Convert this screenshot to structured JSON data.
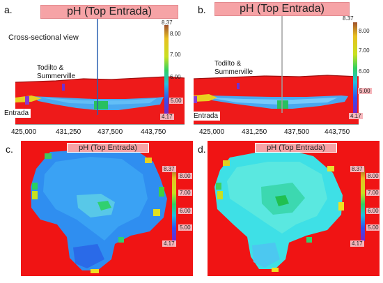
{
  "panels": {
    "a": {
      "letter": "a.",
      "title": "pH (Top Entrada)",
      "caption": "Cross-sectional view",
      "unit_label": "Todilto & Summerville",
      "unit_label_line1": "Todilto &",
      "unit_label_line2": "Summerville",
      "base_label": "Entrada",
      "x_ticks": [
        "425,000",
        "431,250",
        "437,500",
        "443,750"
      ],
      "colorbar": {
        "max": "8.37",
        "min": "4.17",
        "ticks": [
          "8.00",
          "7.00",
          "6.00",
          "5.00"
        ]
      }
    },
    "b": {
      "letter": "b.",
      "title": "pH (Top Entrada)",
      "unit_label_line1": "Todilto &",
      "unit_label_line2": "Summerville",
      "base_label": "Entrada",
      "x_ticks": [
        "425,000",
        "431,250",
        "437,500",
        "443,750"
      ],
      "colorbar": {
        "max": "8.37",
        "min": "4.17",
        "ticks": [
          "8.00",
          "7.00",
          "6.00",
          "5.00"
        ]
      }
    },
    "c": {
      "letter": "c.",
      "title": "pH (Top Entrada)",
      "colorbar": {
        "max": "8.37",
        "min": "4.17",
        "ticks": [
          "8.00",
          "7.00",
          "6.00",
          "5.00"
        ]
      }
    },
    "d": {
      "letter": "d.",
      "title": "pH (Top Entrada)",
      "colorbar": {
        "max": "8.37",
        "min": "4.17",
        "ticks": [
          "8.00",
          "7.00",
          "6.00",
          "5.00"
        ]
      }
    }
  },
  "colors": {
    "background_red": "#f01414",
    "layer_blue": "#4aa8f0",
    "map_c_fill": "#2f8ef0",
    "map_d_fill": "#3ee0e6"
  }
}
